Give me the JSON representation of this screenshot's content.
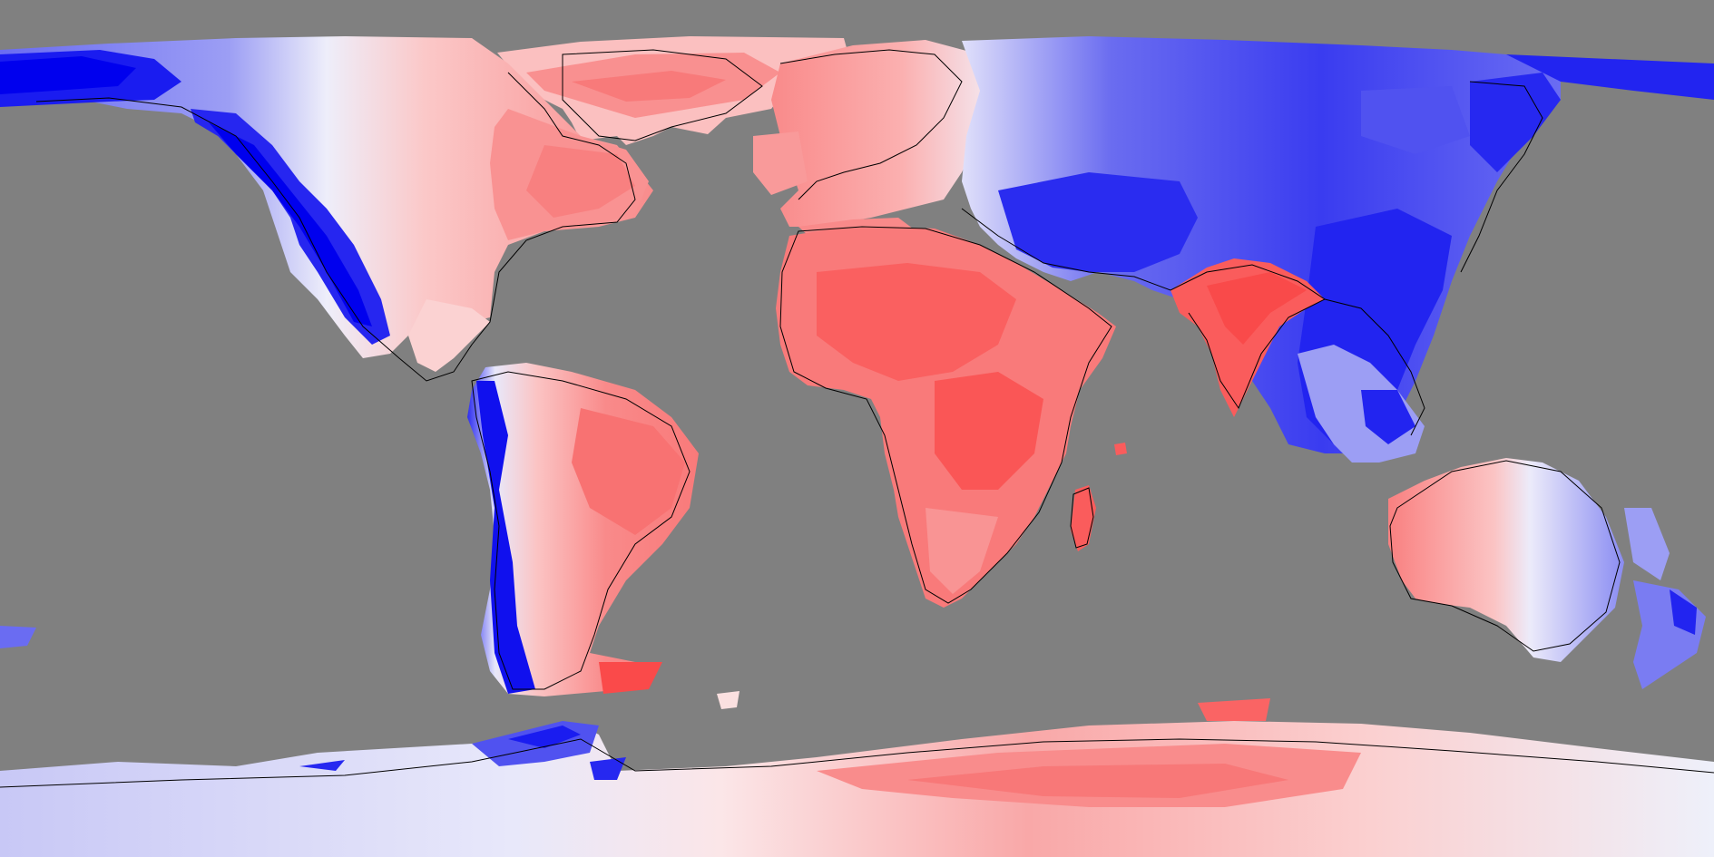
{
  "map": {
    "projection": "equirectangular",
    "background_color": "#808080",
    "outline_color": "#000000",
    "palette": {
      "strong_negative": "#0000f0",
      "negative": "#5a5cf0",
      "weak_negative": "#b4b6f6",
      "neutral": "#f4f0f2",
      "weak_positive": "#f8b4b4",
      "positive": "#fa7f7f",
      "strong_positive": "#fa5a5a"
    },
    "legend": null,
    "title": null
  }
}
